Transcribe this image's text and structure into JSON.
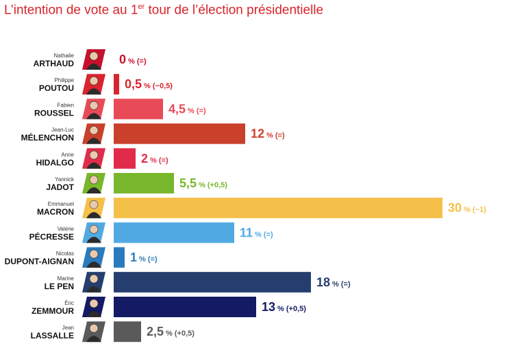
{
  "title": {
    "main": "L’intention de vote au 1",
    "sup": "er",
    "rest": " tour de l’élection présidentielle"
  },
  "chart_data": {
    "type": "bar",
    "orientation": "horizontal",
    "title": "L’intention de vote au 1er tour de l’élection présidentielle",
    "unit": "%",
    "xlim": [
      0,
      30
    ],
    "grid": false,
    "legend": "none",
    "candidates": [
      {
        "first_name": "Nathalie",
        "last_name": "ARTHAUD",
        "value": 0,
        "value_label": "0",
        "change": "(=)",
        "color": "#c8102e"
      },
      {
        "first_name": "Philippe",
        "last_name": "POUTOU",
        "value": 0.5,
        "value_label": "0,5",
        "change": "(−0,5)",
        "color": "#d9232e"
      },
      {
        "first_name": "Fabien",
        "last_name": "ROUSSEL",
        "value": 4.5,
        "value_label": "4,5",
        "change": "(=)",
        "color": "#e84a57"
      },
      {
        "first_name": "Jean-Luc",
        "last_name": "MÉLENCHON",
        "value": 12,
        "value_label": "12",
        "change": "(=)",
        "color": "#c9402b"
      },
      {
        "first_name": "Anne",
        "last_name": "HIDALGO",
        "value": 2,
        "value_label": "2",
        "change": "(=)",
        "color": "#e02c4a"
      },
      {
        "first_name": "Yannick",
        "last_name": "JADOT",
        "value": 5.5,
        "value_label": "5,5",
        "change": "(+0,5)",
        "color": "#78b72b"
      },
      {
        "first_name": "Emmanuel",
        "last_name": "MACRON",
        "value": 30,
        "value_label": "30",
        "change": "(−1)",
        "color": "#f5c04a"
      },
      {
        "first_name": "Valérie",
        "last_name": "PÉCRESSE",
        "value": 11,
        "value_label": "11",
        "change": "(=)",
        "color": "#51a9e2"
      },
      {
        "first_name": "Nicolas",
        "last_name": "DUPONT-AIGNAN",
        "value": 1,
        "value_label": "1",
        "change": "(=)",
        "color": "#2a7bbd"
      },
      {
        "first_name": "Marine",
        "last_name": "LE PEN",
        "value": 18,
        "value_label": "18",
        "change": "(=)",
        "color": "#253e6e"
      },
      {
        "first_name": "Éric",
        "last_name": "ZEMMOUR",
        "value": 13,
        "value_label": "13",
        "change": "(+0,5)",
        "color": "#141a63"
      },
      {
        "first_name": "Jean",
        "last_name": "LASSALLE",
        "value": 2.5,
        "value_label": "2,5",
        "change": "(+0,5)",
        "color": "#5a5a5a"
      }
    ]
  }
}
